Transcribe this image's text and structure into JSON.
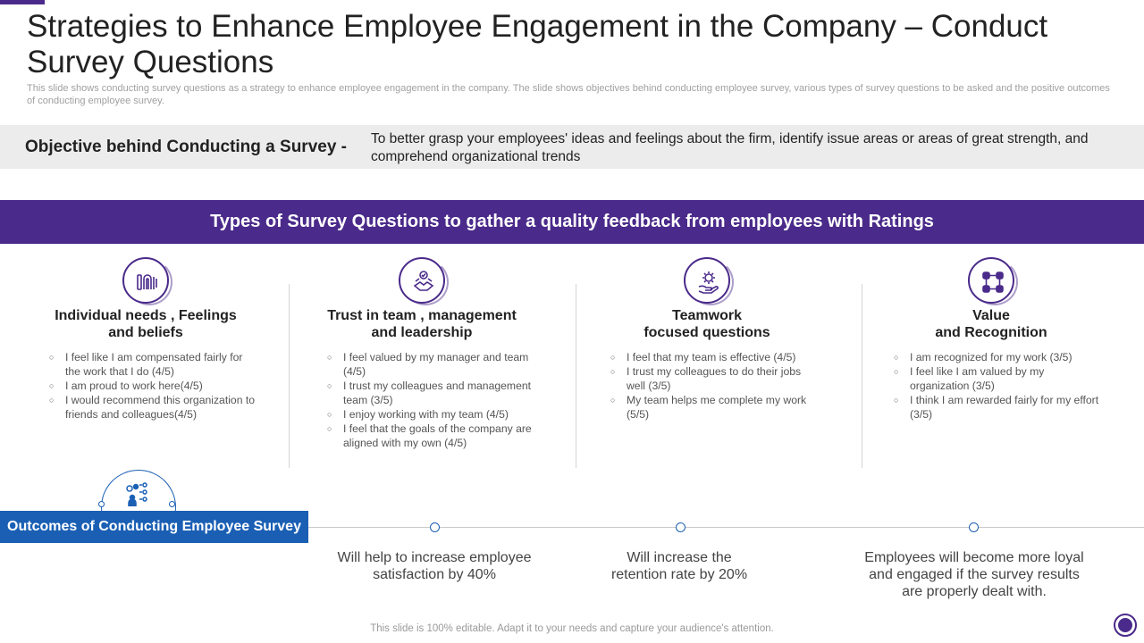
{
  "header": {
    "title": "Strategies to Enhance Employee Engagement in the Company – Conduct Survey Questions",
    "subtitle": "This slide shows conducting survey questions as a strategy to enhance employee engagement in the company. The slide shows objectives behind conducting employee survey, various types of survey questions to be asked and the positive outcomes of conducting employee survey."
  },
  "objective": {
    "label": "Objective behind Conducting a Survey -",
    "text": "To better grasp your employees' ideas and feelings about the firm, identify issue areas or areas of great strength, and comprehend organizational trends"
  },
  "banner": {
    "text": "Types of Survey Questions to gather a quality feedback from employees with Ratings"
  },
  "columns": [
    {
      "icon": "fingerprint-icon",
      "heading_line1": "Individual needs , Feelings",
      "heading_line2": "and beliefs",
      "items": [
        "I feel like I am compensated fairly for the work that I do (4/5)",
        "I am proud to work here(4/5)",
        "I would recommend this organization to friends and colleagues(4/5)"
      ]
    },
    {
      "icon": "handshake-trust-icon",
      "heading_line1": "Trust in team , management",
      "heading_line2": "and leadership",
      "items": [
        "I feel valued by my manager and team (4/5)",
        "I trust my colleagues and management team (3/5)",
        "I enjoy working with my team (4/5)",
        "I feel that the goals of the company are aligned with my own (4/5)"
      ]
    },
    {
      "icon": "gear-hand-icon",
      "heading_line1": "Teamwork",
      "heading_line2": "focused questions",
      "items": [
        "I feel that my team is effective (4/5)",
        "I trust my colleagues to do their jobs well (3/5)",
        "My team helps me complete my work (5/5)"
      ]
    },
    {
      "icon": "recognition-nodes-icon",
      "heading_line1": "Value",
      "heading_line2": "and Recognition",
      "items": [
        "I am recognized for my work (3/5)",
        "I feel like I am valued by my organization (3/5)",
        "I think I am rewarded fairly for my effort (3/5)"
      ]
    }
  ],
  "outcomes": {
    "label": "Outcomes of Conducting Employee Survey",
    "icon": "team-analytics-icon",
    "items": [
      "Will help to increase employee satisfaction by 40%",
      "Will increase the retention rate by 20%",
      "Employees will become more loyal and engaged if the survey results are properly dealt with."
    ]
  },
  "footer": {
    "text": "This slide is 100% editable. Adapt it to your needs and capture your audience's attention."
  },
  "colors": {
    "accent_purple": "#4a2a8a",
    "accent_blue": "#1a5fb4",
    "objective_bg": "#ececec"
  }
}
